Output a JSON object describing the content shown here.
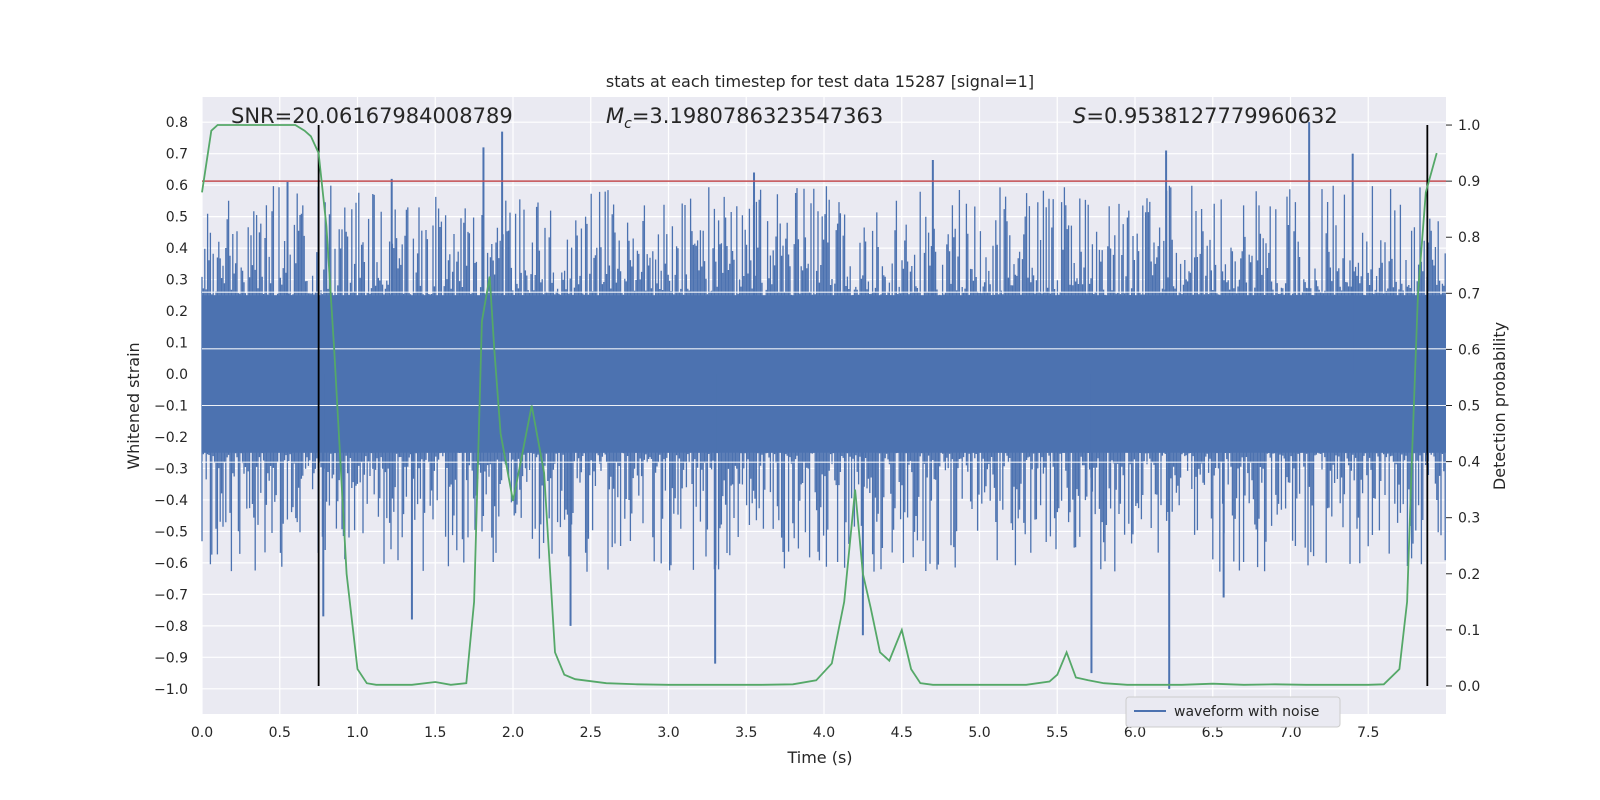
{
  "chart_data": {
    "type": "line",
    "title": "stats at each timestep for test data 15287 [signal=1]",
    "xlabel": "Time (s)",
    "ylabel_left": "Whitened strain",
    "ylabel_right": "Detection probability",
    "xlim": [
      0.0,
      8.0
    ],
    "ylim_left": [
      -1.08,
      0.88
    ],
    "ylim_right": [
      -0.05,
      1.05
    ],
    "x_ticks": [
      "0.0",
      "0.5",
      "1.0",
      "1.5",
      "2.0",
      "2.5",
      "3.0",
      "3.5",
      "4.0",
      "4.5",
      "5.0",
      "5.5",
      "6.0",
      "6.5",
      "7.0",
      "7.5"
    ],
    "y_left_ticks": [
      "0.8",
      "0.7",
      "0.6",
      "0.5",
      "0.4",
      "0.3",
      "0.2",
      "0.1",
      "0.0",
      "−0.1",
      "−0.2",
      "−0.3",
      "−0.4",
      "−0.5",
      "−0.6",
      "−0.7",
      "−0.8",
      "−0.9",
      "−1.0"
    ],
    "y_right_ticks": [
      "1.0",
      "0.9",
      "0.8",
      "0.7",
      "0.6",
      "0.5",
      "0.4",
      "0.3",
      "0.2",
      "0.1",
      "0.0"
    ],
    "annotations": {
      "snr": "SNR=20.06167984008789",
      "mc_symbol": "M",
      "mc_sub": "c",
      "mc_value": "=3.1980786323547363",
      "s_symbol": "S",
      "s_value": "=0.9538127779960632"
    },
    "series": [
      {
        "name": "waveform with noise",
        "color": "#4c72b0",
        "axis": "left",
        "style": "dense noise band",
        "envelope_typical": [
          -0.3,
          0.3
        ],
        "peaks": [
          {
            "x": 0.55,
            "y": 0.61
          },
          {
            "x": 1.22,
            "y": 0.62
          },
          {
            "x": 1.81,
            "y": 0.72
          },
          {
            "x": 1.93,
            "y": 0.77
          },
          {
            "x": 3.55,
            "y": 0.64
          },
          {
            "x": 4.7,
            "y": 0.68
          },
          {
            "x": 6.2,
            "y": 0.71
          },
          {
            "x": 7.12,
            "y": 0.8
          },
          {
            "x": 7.4,
            "y": 0.7
          }
        ],
        "troughs": [
          {
            "x": 0.78,
            "y": -0.77
          },
          {
            "x": 1.35,
            "y": -0.78
          },
          {
            "x": 2.37,
            "y": -0.8
          },
          {
            "x": 3.3,
            "y": -0.92
          },
          {
            "x": 4.25,
            "y": -0.83
          },
          {
            "x": 5.72,
            "y": -0.95
          },
          {
            "x": 6.22,
            "y": -1.0
          },
          {
            "x": 6.57,
            "y": -0.71
          }
        ]
      },
      {
        "name": "",
        "color": "#55a868",
        "axis": "right",
        "x": [
          0.0,
          0.06,
          0.1,
          0.2,
          0.3,
          0.4,
          0.5,
          0.6,
          0.66,
          0.7,
          0.75,
          0.8,
          0.85,
          0.93,
          1.0,
          1.06,
          1.12,
          1.2,
          1.35,
          1.5,
          1.6,
          1.7,
          1.75,
          1.8,
          1.85,
          1.88,
          1.92,
          2.0,
          2.05,
          2.12,
          2.2,
          2.27,
          2.33,
          2.4,
          2.6,
          2.8,
          3.0,
          3.2,
          3.4,
          3.6,
          3.8,
          3.95,
          4.05,
          4.13,
          4.2,
          4.25,
          4.3,
          4.36,
          4.42,
          4.5,
          4.56,
          4.62,
          4.7,
          4.9,
          5.1,
          5.3,
          5.45,
          5.5,
          5.56,
          5.62,
          5.7,
          5.8,
          5.95,
          6.1,
          6.3,
          6.5,
          6.7,
          6.9,
          7.1,
          7.3,
          7.5,
          7.6,
          7.7,
          7.75,
          7.78,
          7.82,
          7.87,
          7.94
        ],
        "y": [
          0.88,
          0.99,
          1.0,
          1.0,
          1.0,
          1.0,
          1.0,
          1.0,
          0.99,
          0.98,
          0.95,
          0.82,
          0.6,
          0.2,
          0.03,
          0.005,
          0.002,
          0.002,
          0.002,
          0.007,
          0.002,
          0.005,
          0.15,
          0.65,
          0.73,
          0.6,
          0.45,
          0.33,
          0.4,
          0.5,
          0.38,
          0.06,
          0.02,
          0.012,
          0.005,
          0.003,
          0.002,
          0.002,
          0.002,
          0.002,
          0.003,
          0.01,
          0.04,
          0.15,
          0.35,
          0.2,
          0.14,
          0.06,
          0.045,
          0.1,
          0.03,
          0.005,
          0.002,
          0.002,
          0.002,
          0.002,
          0.008,
          0.02,
          0.06,
          0.015,
          0.01,
          0.005,
          0.002,
          0.002,
          0.002,
          0.004,
          0.002,
          0.003,
          0.002,
          0.002,
          0.002,
          0.003,
          0.03,
          0.15,
          0.4,
          0.7,
          0.88,
          0.95
        ]
      },
      {
        "name": "",
        "color": "#c44e52",
        "axis": "right",
        "style": "threshold",
        "y": 0.9
      }
    ],
    "vertical_markers_x": [
      0.75,
      7.88
    ],
    "grid": true,
    "legend_position": "lower right"
  }
}
